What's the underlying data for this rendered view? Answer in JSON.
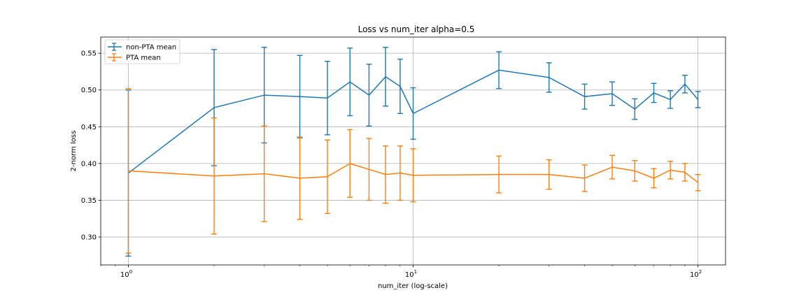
{
  "chart_data": {
    "type": "line",
    "title": "Loss vs num_iter alpha=0.5",
    "xlabel": "num_iter (log-scale)",
    "ylabel": "2-norm loss",
    "xscale": "log",
    "xlim": [
      0.8,
      125
    ],
    "ylim": [
      0.262,
      0.572
    ],
    "x_ticks": [
      {
        "value": 1,
        "base": "10",
        "exp": "0"
      },
      {
        "value": 10,
        "base": "10",
        "exp": "1"
      },
      {
        "value": 100,
        "base": "10",
        "exp": "2"
      }
    ],
    "y_ticks": [
      {
        "value": 0.3,
        "label": "0.30"
      },
      {
        "value": 0.35,
        "label": "0.35"
      },
      {
        "value": 0.4,
        "label": "0.40"
      },
      {
        "value": 0.45,
        "label": "0.45"
      },
      {
        "value": 0.5,
        "label": "0.50"
      },
      {
        "value": 0.55,
        "label": "0.55"
      }
    ],
    "grid": true,
    "legend": "top-left",
    "x": [
      1,
      2,
      3,
      4,
      5,
      6,
      7,
      8,
      9,
      10,
      20,
      30,
      40,
      50,
      60,
      70,
      80,
      90,
      100
    ],
    "series": [
      {
        "name": "non-PTA mean",
        "color": "#1f77b4",
        "values": [
          0.387,
          0.476,
          0.493,
          0.491,
          0.489,
          0.511,
          0.493,
          0.518,
          0.505,
          0.468,
          0.527,
          0.517,
          0.491,
          0.495,
          0.474,
          0.496,
          0.487,
          0.508,
          0.487
        ],
        "err": [
          0.113,
          0.079,
          0.065,
          0.056,
          0.05,
          0.046,
          0.042,
          0.04,
          0.037,
          0.035,
          0.025,
          0.02,
          0.017,
          0.016,
          0.014,
          0.013,
          0.012,
          0.012,
          0.011
        ]
      },
      {
        "name": "PTA mean",
        "color": "#ff7f0e",
        "values": [
          0.39,
          0.383,
          0.386,
          0.38,
          0.382,
          0.4,
          0.392,
          0.385,
          0.387,
          0.384,
          0.385,
          0.385,
          0.38,
          0.395,
          0.39,
          0.38,
          0.391,
          0.388,
          0.374
        ],
        "err": [
          0.112,
          0.079,
          0.065,
          0.056,
          0.05,
          0.046,
          0.042,
          0.039,
          0.037,
          0.036,
          0.025,
          0.02,
          0.018,
          0.016,
          0.014,
          0.013,
          0.012,
          0.012,
          0.011
        ]
      }
    ]
  }
}
